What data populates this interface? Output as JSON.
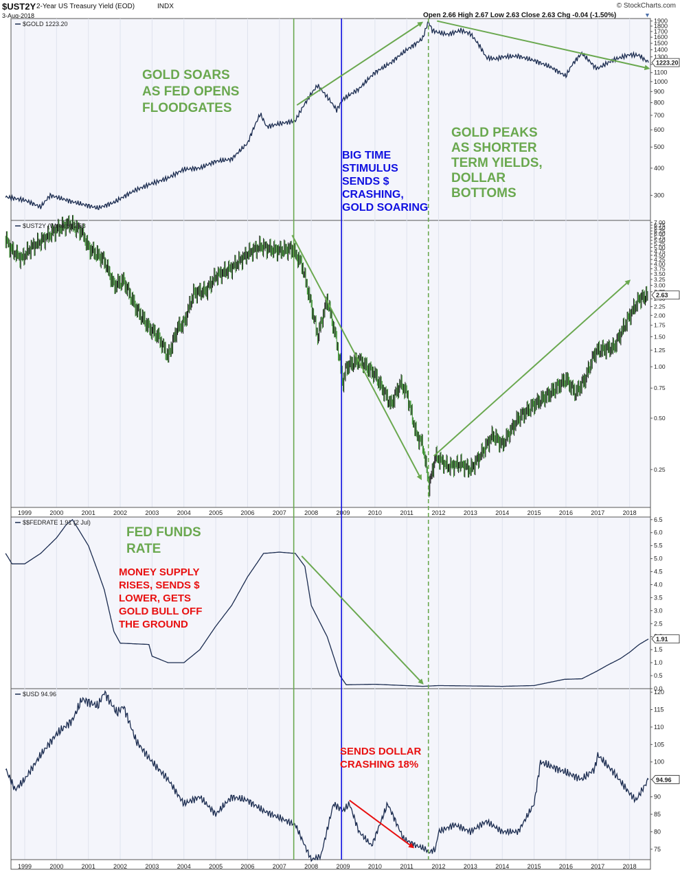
{
  "header": {
    "symbol": "$UST2Y",
    "description": "2-Year US Treasury Yield (EOD)",
    "exchange": "INDX",
    "date": "3-Aug-2018",
    "brand": "© StockCharts.com",
    "ohlc": "Open 2.66  High 2.67  Low 2.63  Close 2.63  Chg -0.04 (-1.50%)"
  },
  "colors": {
    "background": "#ffffff",
    "panel_background": "#f4f5fb",
    "price_line": "#1a2b4f",
    "green_annotation": "#6aa84f",
    "blue_annotation": "#1010e0",
    "red_annotation": "#e81010",
    "candle_up": "#111111",
    "candle_down": "#2e8b22"
  },
  "x_axis_labels": [
    "1999",
    "2000",
    "2001",
    "2002",
    "2003",
    "2004",
    "2005",
    "2006",
    "2007",
    "2008",
    "2009",
    "2010",
    "2011",
    "2012",
    "2013",
    "2014",
    "2015",
    "2016",
    "2017",
    "2018"
  ],
  "chart_data": [
    {
      "type": "line",
      "panel": "gold",
      "legend": "$GOLD 1223.20",
      "last_value": "1223.20",
      "y_scale": "log",
      "ylim": [
        230,
        1950
      ],
      "y_ticks": [
        "1900",
        "1800",
        "1700",
        "1600",
        "1500",
        "1400",
        "1300",
        "1200",
        "1100",
        "1000",
        "900",
        "800",
        "700",
        "600",
        "500",
        "400",
        "300"
      ],
      "x": [
        1998.4,
        1999.0,
        1999.5,
        1999.8,
        2000.5,
        2001.3,
        2001.8,
        2002.5,
        2003.0,
        2003.5,
        2004.0,
        2004.5,
        2005.0,
        2005.5,
        2006.0,
        2006.4,
        2006.6,
        2007.0,
        2007.5,
        2008.0,
        2008.2,
        2008.8,
        2009.0,
        2009.5,
        2010.0,
        2010.5,
        2011.0,
        2011.3,
        2011.5,
        2011.68,
        2011.8,
        2012.0,
        2012.3,
        2012.7,
        2013.0,
        2013.3,
        2013.5,
        2013.8,
        2014.0,
        2014.5,
        2015.0,
        2015.5,
        2015.9,
        2016.0,
        2016.2,
        2016.5,
        2016.9,
        2017.0,
        2017.5,
        2018.0,
        2018.3,
        2018.59
      ],
      "values": [
        295,
        285,
        265,
        300,
        280,
        262,
        278,
        318,
        340,
        360,
        395,
        400,
        430,
        440,
        520,
        710,
        620,
        640,
        660,
        880,
        960,
        740,
        830,
        925,
        1100,
        1220,
        1400,
        1500,
        1580,
        1890,
        1720,
        1680,
        1650,
        1720,
        1660,
        1450,
        1290,
        1270,
        1300,
        1310,
        1250,
        1170,
        1080,
        1060,
        1200,
        1350,
        1170,
        1150,
        1260,
        1330,
        1320,
        1223.2
      ]
    },
    {
      "type": "candlestick",
      "panel": "ust2y",
      "legend": "$UST2Y (Weekly) 2.63",
      "last_value": "2.63",
      "y_scale": "log",
      "ylim": [
        0.15,
        7.2
      ],
      "y_ticks": [
        "7.00",
        "6.75",
        "6.50",
        "6.25",
        "6.00",
        "5.75",
        "5.50",
        "5.25",
        "5.00",
        "4.75",
        "4.50",
        "4.25",
        "4.00",
        "3.75",
        "3.50",
        "3.25",
        "3.00",
        "2.75",
        "2.50",
        "2.25",
        "2.00",
        "1.75",
        "1.50",
        "1.25",
        "1.00",
        "0.75",
        "0.50",
        "0.25"
      ],
      "x": [
        1998.4,
        1998.6,
        1998.9,
        1999.2,
        1999.6,
        2000.0,
        2000.4,
        2000.8,
        2001.0,
        2001.5,
        2001.8,
        2002.1,
        2002.5,
        2002.9,
        2003.2,
        2003.5,
        2003.8,
        2004.0,
        2004.3,
        2004.7,
        2005.0,
        2005.5,
        2006.0,
        2006.4,
        2006.7,
        2007.0,
        2007.4,
        2007.7,
        2008.0,
        2008.2,
        2008.5,
        2008.8,
        2009.0,
        2009.1,
        2009.5,
        2010.0,
        2010.5,
        2010.8,
        2011.0,
        2011.3,
        2011.5,
        2011.7,
        2011.9,
        2012.3,
        2012.7,
        2013.0,
        2013.3,
        2013.7,
        2014.0,
        2014.5,
        2015.0,
        2015.5,
        2016.0,
        2016.3,
        2016.6,
        2016.9,
        2017.0,
        2017.5,
        2018.0,
        2018.3,
        2018.59
      ],
      "values": [
        5.6,
        4.8,
        4.3,
        5.0,
        5.6,
        6.4,
        6.9,
        6.2,
        5.0,
        4.2,
        3.0,
        3.2,
        2.2,
        1.7,
        1.5,
        1.15,
        1.7,
        1.8,
        2.7,
        2.8,
        3.4,
        3.8,
        4.6,
        5.1,
        4.9,
        4.8,
        4.9,
        4.0,
        2.3,
        1.5,
        2.5,
        1.4,
        0.8,
        1.0,
        1.1,
        0.9,
        0.6,
        0.8,
        0.7,
        0.4,
        0.35,
        0.2,
        0.3,
        0.26,
        0.27,
        0.25,
        0.3,
        0.4,
        0.35,
        0.5,
        0.6,
        0.7,
        0.85,
        0.7,
        0.85,
        1.2,
        1.25,
        1.3,
        2.0,
        2.5,
        2.63
      ]
    },
    {
      "type": "line",
      "panel": "fedrate",
      "legend": "$$FEDRATE 1.91 (2 Jul)",
      "last_value": "1.91",
      "ylim": [
        0,
        6.6
      ],
      "y_ticks": [
        "6.5",
        "6.0",
        "5.5",
        "5.0",
        "4.5",
        "4.0",
        "3.5",
        "3.0",
        "2.5",
        "2.0",
        "1.5",
        "1.0",
        "0.5",
        "0.0"
      ],
      "x": [
        1998.4,
        1998.6,
        1999.0,
        1999.5,
        2000.0,
        2000.3,
        2000.5,
        2001.0,
        2001.3,
        2001.5,
        2001.8,
        2002.0,
        2002.9,
        2003.0,
        2003.5,
        2004.0,
        2004.5,
        2005.0,
        2005.5,
        2006.0,
        2006.5,
        2007.0,
        2007.5,
        2007.8,
        2008.0,
        2008.5,
        2008.9,
        2009.1,
        2010.0,
        2011.5,
        2012.0,
        2014.0,
        2015.0,
        2015.95,
        2016.5,
        2016.95,
        2017.3,
        2017.7,
        2018.0,
        2018.3,
        2018.59
      ],
      "values": [
        5.2,
        4.8,
        4.8,
        5.2,
        5.8,
        6.3,
        6.5,
        5.5,
        4.5,
        3.8,
        2.2,
        1.75,
        1.7,
        1.25,
        1.0,
        1.0,
        1.5,
        2.4,
        3.2,
        4.3,
        5.2,
        5.25,
        5.2,
        4.7,
        3.2,
        2.0,
        0.5,
        0.15,
        0.17,
        0.09,
        0.12,
        0.09,
        0.12,
        0.36,
        0.38,
        0.66,
        0.9,
        1.15,
        1.4,
        1.7,
        1.91
      ]
    },
    {
      "type": "line",
      "panel": "usd",
      "legend": "$USD 94.96",
      "last_value": "94.96",
      "ylim": [
        72,
        121
      ],
      "y_ticks": [
        "120",
        "115",
        "110",
        "105",
        "100",
        "95",
        "90",
        "85",
        "80",
        "75"
      ],
      "x": [
        1998.4,
        1998.7,
        1999.0,
        1999.5,
        2000.0,
        2000.5,
        2000.8,
        2001.3,
        2001.5,
        2001.9,
        2002.1,
        2002.5,
        2003.0,
        2003.5,
        2004.0,
        2004.5,
        2005.0,
        2005.5,
        2006.0,
        2006.5,
        2007.0,
        2007.5,
        2008.0,
        2008.3,
        2008.7,
        2009.0,
        2009.2,
        2009.5,
        2009.9,
        2010.4,
        2010.9,
        2011.3,
        2011.6,
        2011.68,
        2011.9,
        2012.0,
        2012.5,
        2013.0,
        2013.5,
        2014.0,
        2014.5,
        2015.0,
        2015.2,
        2016.0,
        2016.5,
        2016.9,
        2017.0,
        2017.5,
        2018.0,
        2018.2,
        2018.59
      ],
      "values": [
        98,
        92,
        95,
        102,
        108,
        112,
        118,
        116,
        120,
        114,
        116,
        106,
        100,
        95,
        88,
        90,
        85,
        90,
        89,
        86,
        84,
        82,
        72,
        73,
        88,
        86,
        88,
        80,
        76,
        88,
        78,
        76,
        75,
        74,
        75,
        80,
        82,
        80,
        83,
        80,
        80,
        88,
        100,
        97,
        95,
        98,
        102,
        97,
        91,
        89,
        94.96
      ]
    }
  ],
  "annotations": {
    "gold_soars": "GOLD SOARS\nAS FED OPENS\nFLOODGATES",
    "big_time": "BIG TIME\nSTIMULUS\nSENDS $\nCRASHING,\nGOLD SOARING",
    "gold_peaks": "GOLD PEAKS\nAS SHORTER\nTERM YIELDS,\nDOLLAR\nBOTTOMS",
    "fed_funds": "FED FUNDS\nRATE",
    "money_supply": "MONEY SUPPLY\nRISES, SENDS $\nLOWER, GETS\nGOLD BULL OFF\nTHE GROUND",
    "sends_dollar": "SENDS DOLLAR\nCRASHING 18%"
  }
}
